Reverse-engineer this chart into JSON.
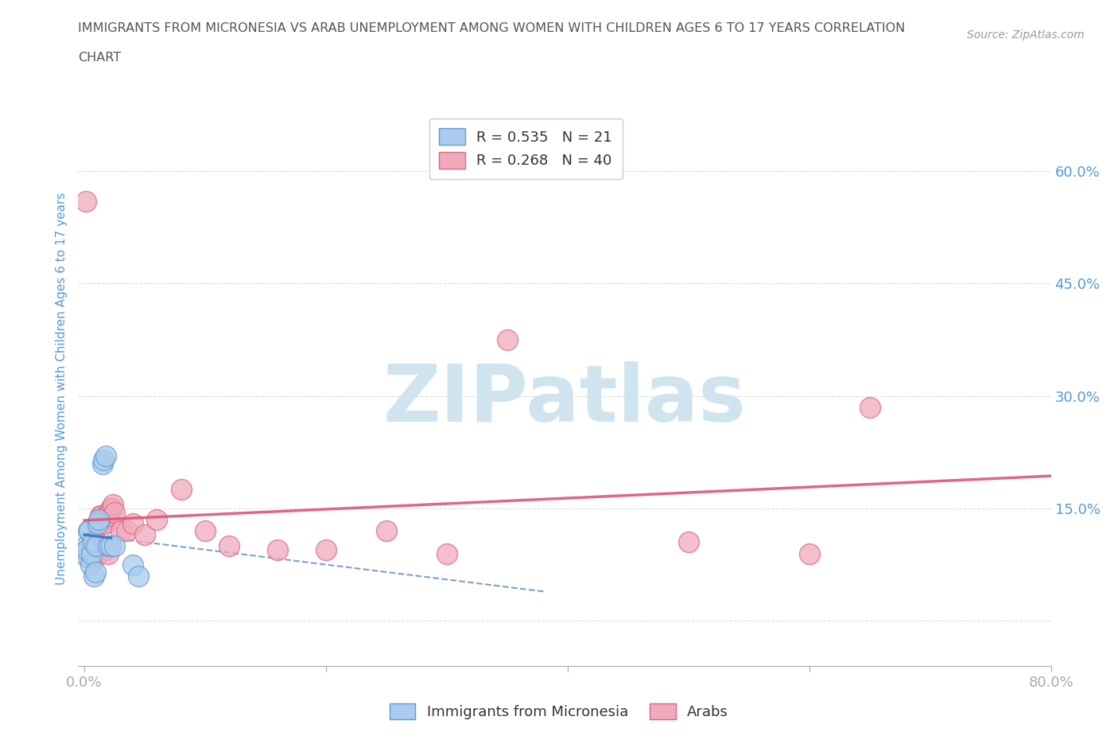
{
  "title_line1": "IMMIGRANTS FROM MICRONESIA VS ARAB UNEMPLOYMENT AMONG WOMEN WITH CHILDREN AGES 6 TO 17 YEARS CORRELATION",
  "title_line2": "CHART",
  "source": "Source: ZipAtlas.com",
  "ylabel": "Unemployment Among Women with Children Ages 6 to 17 years",
  "xlim": [
    -0.005,
    0.8
  ],
  "ylim": [
    -0.06,
    0.68
  ],
  "micronesia_color": "#aaccee",
  "arab_color": "#f0aabb",
  "micronesia_edge_color": "#6699cc",
  "arab_edge_color": "#dd6688",
  "micronesia_line_color": "#4477bb",
  "arab_line_color": "#dd5577",
  "micronesia_R": 0.535,
  "micronesia_N": 21,
  "arab_R": 0.268,
  "arab_N": 40,
  "micronesia_x": [
    0.001,
    0.002,
    0.002,
    0.003,
    0.004,
    0.005,
    0.006,
    0.007,
    0.008,
    0.009,
    0.01,
    0.011,
    0.012,
    0.015,
    0.016,
    0.018,
    0.02,
    0.022,
    0.025,
    0.04,
    0.045
  ],
  "micronesia_y": [
    0.1,
    0.085,
    0.095,
    0.12,
    0.12,
    0.075,
    0.09,
    0.105,
    0.06,
    0.065,
    0.1,
    0.13,
    0.135,
    0.21,
    0.215,
    0.22,
    0.1,
    0.1,
    0.1,
    0.075,
    0.06
  ],
  "arab_x": [
    0.001,
    0.002,
    0.004,
    0.006,
    0.007,
    0.008,
    0.009,
    0.01,
    0.011,
    0.012,
    0.013,
    0.014,
    0.015,
    0.016,
    0.017,
    0.018,
    0.019,
    0.02,
    0.021,
    0.022,
    0.023,
    0.024,
    0.025,
    0.03,
    0.035,
    0.04,
    0.05,
    0.06,
    0.08,
    0.1,
    0.12,
    0.16,
    0.2,
    0.25,
    0.3,
    0.35,
    0.5,
    0.6,
    0.65,
    0.02
  ],
  "arab_y": [
    0.56,
    0.095,
    0.085,
    0.1,
    0.095,
    0.09,
    0.085,
    0.125,
    0.13,
    0.13,
    0.14,
    0.14,
    0.135,
    0.13,
    0.13,
    0.095,
    0.14,
    0.145,
    0.145,
    0.15,
    0.15,
    0.155,
    0.145,
    0.12,
    0.12,
    0.13,
    0.115,
    0.135,
    0.175,
    0.12,
    0.1,
    0.095,
    0.095,
    0.12,
    0.09,
    0.375,
    0.105,
    0.09,
    0.285,
    0.09
  ],
  "background_color": "#ffffff",
  "grid_color": "#dddddd",
  "title_color": "#555555",
  "axis_color": "#5599dd",
  "watermark_color": "#d0e4f0"
}
